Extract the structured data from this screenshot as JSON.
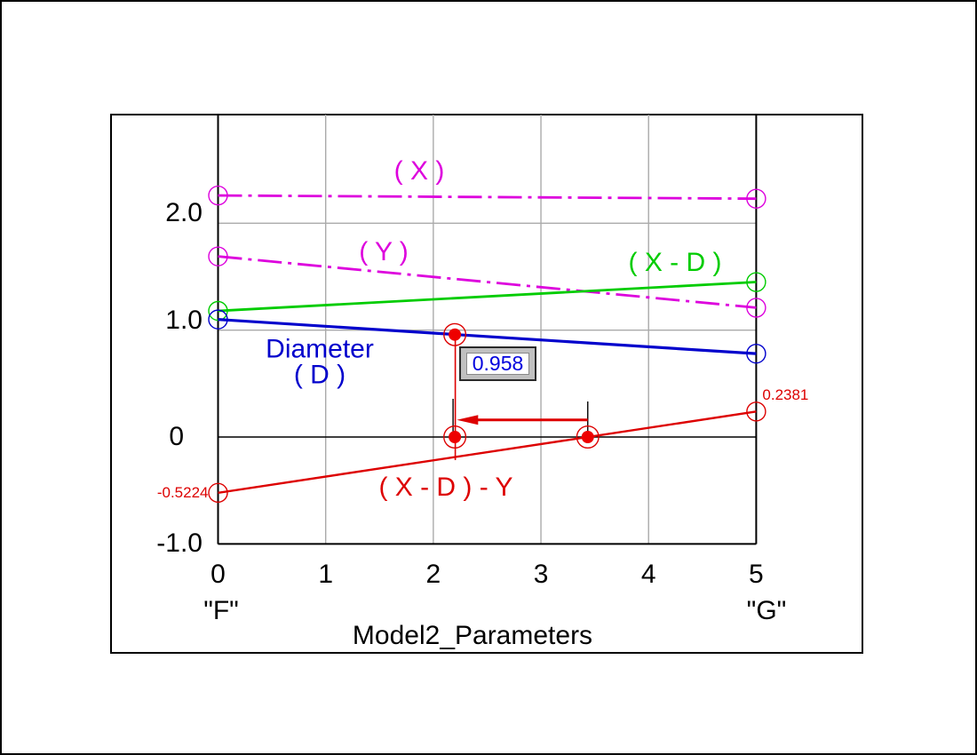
{
  "window": {
    "background": "#ffffff",
    "frame_color": "#000000"
  },
  "chart_data": {
    "type": "line",
    "title": "Model2_Parameters",
    "x_axis": {
      "range": [
        0,
        5
      ],
      "ticks": [
        {
          "value": 0,
          "label": "0"
        },
        {
          "value": 1,
          "label": "1"
        },
        {
          "value": 2,
          "label": "2"
        },
        {
          "value": 3,
          "label": "3"
        },
        {
          "value": 4,
          "label": "4"
        },
        {
          "value": 5,
          "label": "5"
        }
      ],
      "start_label": "\"F\"",
      "end_label": "\"G\""
    },
    "y_axis": {
      "visible_range": [
        -1.0,
        3.02
      ],
      "ticks": [
        {
          "value": 2.0,
          "label": "2.0"
        },
        {
          "value": 1.0,
          "label": "1.0"
        },
        {
          "value": 0,
          "label": "0"
        },
        {
          "value": -1.0,
          "label": "-1.0"
        }
      ]
    },
    "grid": true,
    "legend": "labels-on-curves",
    "series": [
      {
        "name": "X",
        "label": "( X )",
        "color": "#dd00dd",
        "line_style": "dash-dot",
        "points": [
          [
            0,
            2.26
          ],
          [
            5,
            2.23
          ]
        ],
        "endpoint_marker": "open-circle"
      },
      {
        "name": "Y",
        "label": "( Y )",
        "color": "#dd00dd",
        "line_style": "dash-dot",
        "points": [
          [
            0,
            1.69
          ],
          [
            5,
            1.21
          ]
        ],
        "endpoint_marker": "open-circle"
      },
      {
        "name": "X-D",
        "label": "( X - D )",
        "color": "#00cc00",
        "line_style": "solid",
        "points": [
          [
            0,
            1.18
          ],
          [
            5,
            1.45
          ]
        ],
        "endpoint_marker": "open-circle"
      },
      {
        "name": "D",
        "label": "Diameter ( D )",
        "label_lines": [
          "Diameter",
          "( D )"
        ],
        "color": "#0000cc",
        "line_style": "solid",
        "points": [
          [
            0,
            1.1
          ],
          [
            5,
            0.78
          ]
        ],
        "endpoint_marker": "open-circle"
      },
      {
        "name": "XDY",
        "label": "( X - D ) - Y",
        "color": "#dd0000",
        "line_style": "solid",
        "points": [
          [
            0,
            -0.5224
          ],
          [
            5,
            0.2381
          ]
        ],
        "endpoint_marker": "open-circle"
      }
    ],
    "point_labels": [
      {
        "text": "-0.5224",
        "series": "XDY",
        "at": "start",
        "color": "#dd0000"
      },
      {
        "text": "0.2381",
        "series": "XDY",
        "at": "end",
        "color": "#dd0000"
      }
    ],
    "measurement": {
      "value_box": {
        "text": "0.958"
      },
      "markers": [
        {
          "x": 2.2,
          "y": 0.958
        },
        {
          "x": 2.2,
          "y": 0
        },
        {
          "x": 3.435,
          "y": 0
        }
      ],
      "arrow": {
        "from_x": 3.435,
        "to_x": 2.21,
        "y": 0.16,
        "direction": "left"
      }
    },
    "colors": {
      "grid": "#aaaaaa",
      "axis": "#000000",
      "magenta": "#dd00dd",
      "green": "#00cc00",
      "blue": "#0000cc",
      "red": "#dd0000",
      "marker_red": "#ee0000",
      "value_text": "#0000dd"
    }
  }
}
